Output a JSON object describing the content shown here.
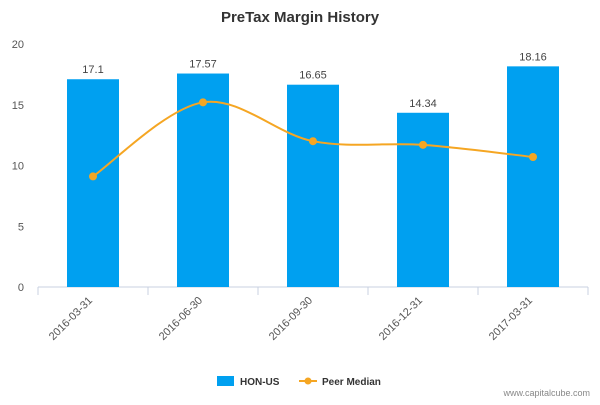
{
  "chart_data": {
    "type": "bar",
    "title": "PreTax Margin History",
    "categories": [
      "2016-03-31",
      "2016-06-30",
      "2016-09-30",
      "2016-12-31",
      "2017-03-31"
    ],
    "series": [
      {
        "name": "HON-US",
        "type": "bar",
        "values": [
          17.1,
          17.57,
          16.65,
          14.34,
          18.16
        ],
        "labels": [
          "17.1",
          "17.57",
          "16.65",
          "14.34",
          "18.16"
        ],
        "color": "#00a0f0"
      },
      {
        "name": "Peer Median",
        "type": "line",
        "values": [
          9.1,
          15.2,
          12.0,
          11.7,
          10.7
        ],
        "color": "#f5a623"
      }
    ],
    "ylim": [
      0,
      20
    ],
    "yticks": [
      "0",
      "5",
      "10",
      "15",
      "20"
    ],
    "grid": false,
    "legend": "bottom-center"
  },
  "footer": {
    "source": "www.capitalcube.com"
  }
}
